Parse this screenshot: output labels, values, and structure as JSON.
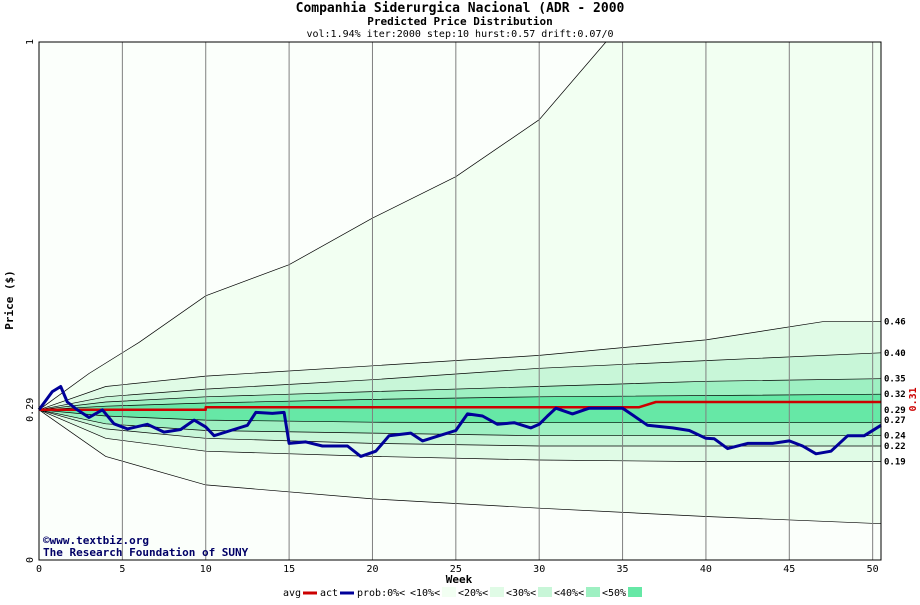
{
  "title": "Companhia Siderurgica Nacional (ADR - 2000",
  "subtitle": "Predicted Price Distribution",
  "params": "vol:1.94% iter:2000 step:10 hurst:0.57 drift:0.07/0",
  "watermark": {
    "line1": "©www.textbiz.org",
    "line2": "The Research Foundation of SUNY"
  },
  "colors": {
    "avg": "#cc0000",
    "act": "#000099",
    "band_10": "#f2fff2",
    "band_20": "#e0fbe6",
    "band_30": "#c8f6d8",
    "band_40": "#9ef0c2",
    "band_50": "#66e8a6",
    "grid": "#808080"
  },
  "legend": [
    {
      "label": "avg",
      "swatch": "line",
      "color": "#cc0000"
    },
    {
      "label": "act",
      "swatch": "line",
      "color": "#000099"
    },
    {
      "label": "prob:0%<",
      "swatch": "none",
      "color": ""
    },
    {
      "label": "<10%<",
      "swatch": "box",
      "color": "#f2fff2"
    },
    {
      "label": "<20%<",
      "swatch": "box",
      "color": "#e0fbe6"
    },
    {
      "label": "<30%<",
      "swatch": "box",
      "color": "#c8f6d8"
    },
    {
      "label": "<40%<",
      "swatch": "box",
      "color": "#9ef0c2"
    },
    {
      "label": "<50%",
      "swatch": "box",
      "color": "#66e8a6"
    }
  ],
  "chart_data": {
    "type": "area",
    "title": "Companhia Siderurgica Nacional (ADR - 2000",
    "subtitle": "Predicted Price Distribution",
    "xlabel": "Week",
    "ylabel": "Price ($)",
    "xlim": [
      0,
      50.5
    ],
    "ylim": [
      0,
      1
    ],
    "x_ticks": [
      "0",
      "5",
      "10",
      "15",
      "20",
      "25",
      "30",
      "35",
      "40",
      "45",
      "50"
    ],
    "y_ticks": [
      {
        "value": 0,
        "label": "0"
      },
      {
        "value": 0.29,
        "label": "0.29"
      },
      {
        "value": 1,
        "label": "1"
      }
    ],
    "right_labels": [
      "0.46",
      "0.40",
      "0.35",
      "0.32",
      "0.29",
      "0.27",
      "0.24",
      "0.22",
      "0.19"
    ],
    "right_value_label": "0.31",
    "grid": true,
    "bands": [
      {
        "name": "<10%",
        "upper": [
          [
            0,
            0.29
          ],
          [
            3,
            0.36
          ],
          [
            6,
            0.42
          ],
          [
            10,
            0.51
          ],
          [
            15,
            0.57
          ],
          [
            20,
            0.66
          ],
          [
            25,
            0.74
          ],
          [
            30,
            0.85
          ],
          [
            34,
            1.0
          ],
          [
            50.5,
            1.0
          ]
        ],
        "lower": [
          [
            0,
            0.29
          ],
          [
            4,
            0.2
          ],
          [
            10,
            0.145
          ],
          [
            20,
            0.118
          ],
          [
            30,
            0.1
          ],
          [
            40,
            0.084
          ],
          [
            50.5,
            0.07
          ]
        ]
      },
      {
        "name": "<20%",
        "upper": [
          [
            0,
            0.29
          ],
          [
            4,
            0.335
          ],
          [
            10,
            0.355
          ],
          [
            20,
            0.375
          ],
          [
            30,
            0.395
          ],
          [
            40,
            0.425
          ],
          [
            47,
            0.46
          ],
          [
            50.5,
            0.46
          ]
        ],
        "lower": [
          [
            0,
            0.29
          ],
          [
            4,
            0.235
          ],
          [
            10,
            0.21
          ],
          [
            20,
            0.2
          ],
          [
            30,
            0.193
          ],
          [
            40,
            0.19
          ],
          [
            50.5,
            0.19
          ]
        ]
      },
      {
        "name": "<30%",
        "upper": [
          [
            0,
            0.29
          ],
          [
            4,
            0.315
          ],
          [
            10,
            0.33
          ],
          [
            20,
            0.348
          ],
          [
            30,
            0.37
          ],
          [
            40,
            0.385
          ],
          [
            50.5,
            0.4
          ]
        ],
        "lower": [
          [
            0,
            0.29
          ],
          [
            4,
            0.253
          ],
          [
            10,
            0.235
          ],
          [
            20,
            0.225
          ],
          [
            30,
            0.22
          ],
          [
            50.5,
            0.22
          ]
        ]
      },
      {
        "name": "<40%",
        "upper": [
          [
            0,
            0.29
          ],
          [
            4,
            0.305
          ],
          [
            10,
            0.315
          ],
          [
            20,
            0.325
          ],
          [
            30,
            0.335
          ],
          [
            40,
            0.345
          ],
          [
            50.5,
            0.35
          ]
        ],
        "lower": [
          [
            0,
            0.29
          ],
          [
            4,
            0.263
          ],
          [
            10,
            0.25
          ],
          [
            20,
            0.245
          ],
          [
            30,
            0.24
          ],
          [
            50.5,
            0.24
          ]
        ]
      },
      {
        "name": "<50%",
        "upper": [
          [
            0,
            0.29
          ],
          [
            4,
            0.297
          ],
          [
            10,
            0.303
          ],
          [
            20,
            0.31
          ],
          [
            30,
            0.315
          ],
          [
            50.5,
            0.32
          ]
        ],
        "lower": [
          [
            0,
            0.29
          ],
          [
            4,
            0.278
          ],
          [
            10,
            0.27
          ],
          [
            20,
            0.266
          ],
          [
            30,
            0.265
          ],
          [
            50.5,
            0.265
          ]
        ]
      }
    ],
    "series": [
      {
        "name": "avg",
        "color": "#cc0000",
        "points": [
          [
            0,
            0.29
          ],
          [
            10,
            0.29
          ],
          [
            10,
            0.295
          ],
          [
            36,
            0.295
          ],
          [
            37,
            0.305
          ],
          [
            50.5,
            0.305
          ]
        ]
      },
      {
        "name": "act",
        "color": "#000099",
        "points": [
          [
            0,
            0.29
          ],
          [
            0.8,
            0.325
          ],
          [
            1.3,
            0.335
          ],
          [
            1.7,
            0.305
          ],
          [
            2.3,
            0.29
          ],
          [
            3,
            0.275
          ],
          [
            3.8,
            0.29
          ],
          [
            4.5,
            0.263
          ],
          [
            5.3,
            0.253
          ],
          [
            6.5,
            0.262
          ],
          [
            7.5,
            0.247
          ],
          [
            8.5,
            0.252
          ],
          [
            9.3,
            0.27
          ],
          [
            10,
            0.257
          ],
          [
            10.5,
            0.24
          ],
          [
            11.5,
            0.25
          ],
          [
            12.5,
            0.26
          ],
          [
            13,
            0.285
          ],
          [
            14,
            0.283
          ],
          [
            14.7,
            0.285
          ],
          [
            15,
            0.225
          ],
          [
            16,
            0.228
          ],
          [
            17,
            0.22
          ],
          [
            18.5,
            0.22
          ],
          [
            19.3,
            0.2
          ],
          [
            20.2,
            0.21
          ],
          [
            21,
            0.24
          ],
          [
            22.3,
            0.245
          ],
          [
            23,
            0.23
          ],
          [
            24,
            0.24
          ],
          [
            25,
            0.25
          ],
          [
            25.7,
            0.282
          ],
          [
            26.6,
            0.278
          ],
          [
            27.5,
            0.262
          ],
          [
            28.5,
            0.265
          ],
          [
            29.5,
            0.255
          ],
          [
            30,
            0.262
          ],
          [
            30.5,
            0.278
          ],
          [
            31,
            0.293
          ],
          [
            32,
            0.282
          ],
          [
            33,
            0.293
          ],
          [
            35,
            0.293
          ],
          [
            35.6,
            0.28
          ],
          [
            36.5,
            0.26
          ],
          [
            38,
            0.255
          ],
          [
            39,
            0.25
          ],
          [
            40,
            0.235
          ],
          [
            40.5,
            0.234
          ],
          [
            41.3,
            0.215
          ],
          [
            42.5,
            0.225
          ],
          [
            44,
            0.225
          ],
          [
            45,
            0.23
          ],
          [
            45.8,
            0.22
          ],
          [
            46.6,
            0.205
          ],
          [
            47.5,
            0.21
          ],
          [
            48.5,
            0.24
          ],
          [
            49.5,
            0.24
          ],
          [
            50.5,
            0.26
          ]
        ]
      }
    ]
  }
}
